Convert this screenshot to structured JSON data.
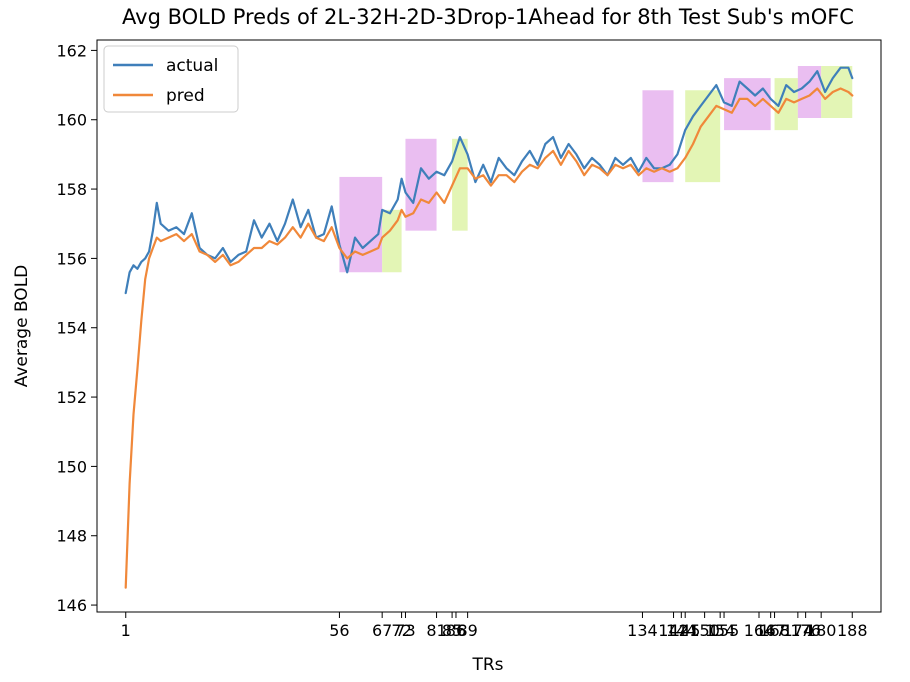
{
  "chart_data": {
    "type": "line",
    "title": "Avg BOLD Preds of 2L-32H-2D-3Drop-1Ahead for 8th Test Sub's mOFC",
    "xlabel": "TRs",
    "ylabel": "Average BOLD",
    "xlim": [
      -6.4,
      195.4
    ],
    "ylim": [
      145.8,
      162.3
    ],
    "x_ticks": [
      1,
      56,
      67,
      72,
      73,
      81,
      85,
      86,
      89,
      134,
      142,
      144,
      145,
      150,
      154,
      155,
      164,
      167,
      168,
      174,
      176,
      180,
      188
    ],
    "y_ticks": [
      146,
      148,
      150,
      152,
      154,
      156,
      158,
      160,
      162
    ],
    "legend": {
      "position": "top-left",
      "entries": [
        "actual",
        "pred"
      ]
    },
    "colors": {
      "actual": "#3f7fba",
      "pred": "#f0883a",
      "region_magenta": "#e3a8ec",
      "region_green": "#d9f29c"
    },
    "regions": [
      {
        "x0": 56,
        "x1": 67,
        "y0": 155.6,
        "y1": 158.35,
        "color": "magenta"
      },
      {
        "x0": 67,
        "x1": 72,
        "y0": 155.6,
        "y1": 157.4,
        "color": "green"
      },
      {
        "x0": 73,
        "x1": 81,
        "y0": 156.8,
        "y1": 159.45,
        "color": "magenta"
      },
      {
        "x0": 85,
        "x1": 89,
        "y0": 156.8,
        "y1": 159.45,
        "color": "green"
      },
      {
        "x0": 134,
        "x1": 142,
        "y0": 158.2,
        "y1": 160.85,
        "color": "magenta"
      },
      {
        "x0": 145,
        "x1": 154,
        "y0": 158.2,
        "y1": 160.85,
        "color": "green"
      },
      {
        "x0": 155,
        "x1": 167,
        "y0": 159.7,
        "y1": 161.2,
        "color": "magenta"
      },
      {
        "x0": 168,
        "x1": 174,
        "y0": 159.7,
        "y1": 161.2,
        "color": "green"
      },
      {
        "x0": 174,
        "x1": 180,
        "y0": 160.05,
        "y1": 161.55,
        "color": "magenta"
      },
      {
        "x0": 180,
        "x1": 188,
        "y0": 160.05,
        "y1": 161.55,
        "color": "green"
      }
    ],
    "series": [
      {
        "name": "actual",
        "x": [
          1,
          2,
          3,
          4,
          5,
          6,
          7,
          8,
          9,
          10,
          12,
          14,
          16,
          18,
          20,
          22,
          24,
          26,
          28,
          30,
          32,
          34,
          36,
          38,
          40,
          42,
          44,
          46,
          48,
          50,
          52,
          54,
          56,
          58,
          60,
          62,
          64,
          66,
          67,
          69,
          71,
          72,
          73,
          75,
          77,
          79,
          81,
          83,
          85,
          87,
          89,
          91,
          93,
          95,
          97,
          99,
          101,
          103,
          105,
          107,
          109,
          111,
          113,
          115,
          117,
          119,
          121,
          123,
          125,
          127,
          129,
          131,
          133,
          135,
          137,
          139,
          141,
          143,
          145,
          147,
          149,
          151,
          153,
          155,
          157,
          159,
          161,
          163,
          165,
          167,
          169,
          171,
          173,
          175,
          177,
          179,
          181,
          183,
          185,
          187,
          188
        ],
        "y": [
          155.0,
          155.6,
          155.8,
          155.7,
          155.9,
          156.0,
          156.2,
          156.8,
          157.6,
          157.0,
          156.8,
          156.9,
          156.7,
          157.3,
          156.3,
          156.1,
          156.0,
          156.3,
          155.9,
          156.1,
          156.2,
          157.1,
          156.6,
          157.0,
          156.5,
          157.0,
          157.7,
          156.9,
          157.4,
          156.6,
          156.7,
          157.5,
          156.4,
          155.6,
          156.6,
          156.3,
          156.5,
          156.7,
          157.4,
          157.3,
          157.7,
          158.3,
          157.9,
          157.6,
          158.6,
          158.3,
          158.5,
          158.4,
          158.8,
          159.5,
          159.0,
          158.2,
          158.7,
          158.2,
          158.9,
          158.6,
          158.4,
          158.8,
          159.1,
          158.7,
          159.3,
          159.5,
          158.9,
          159.3,
          159.0,
          158.6,
          158.9,
          158.7,
          158.4,
          158.9,
          158.7,
          158.9,
          158.5,
          158.9,
          158.6,
          158.6,
          158.7,
          159.0,
          159.7,
          160.1,
          160.4,
          160.7,
          161.0,
          160.5,
          160.4,
          161.1,
          160.9,
          160.7,
          160.9,
          160.6,
          160.4,
          161.0,
          160.8,
          160.9,
          161.1,
          161.4,
          160.8,
          161.2,
          161.5,
          161.5,
          161.2
        ]
      },
      {
        "name": "pred",
        "x": [
          1,
          2,
          3,
          4,
          5,
          6,
          7,
          8,
          9,
          10,
          12,
          14,
          16,
          18,
          20,
          22,
          24,
          26,
          28,
          30,
          32,
          34,
          36,
          38,
          40,
          42,
          44,
          46,
          48,
          50,
          52,
          54,
          56,
          58,
          60,
          62,
          64,
          66,
          67,
          69,
          71,
          72,
          73,
          75,
          77,
          79,
          81,
          83,
          85,
          87,
          89,
          91,
          93,
          95,
          97,
          99,
          101,
          103,
          105,
          107,
          109,
          111,
          113,
          115,
          117,
          119,
          121,
          123,
          125,
          127,
          129,
          131,
          133,
          135,
          137,
          139,
          141,
          143,
          145,
          147,
          149,
          151,
          153,
          155,
          157,
          159,
          161,
          163,
          165,
          167,
          169,
          171,
          173,
          175,
          177,
          179,
          181,
          183,
          185,
          187,
          188
        ],
        "y": [
          146.5,
          149.5,
          151.5,
          152.8,
          154.2,
          155.4,
          156.0,
          156.3,
          156.6,
          156.5,
          156.6,
          156.7,
          156.5,
          156.7,
          156.2,
          156.1,
          155.9,
          156.1,
          155.8,
          155.9,
          156.1,
          156.3,
          156.3,
          156.5,
          156.4,
          156.6,
          156.9,
          156.6,
          157.0,
          156.6,
          156.5,
          156.9,
          156.3,
          156.0,
          156.2,
          156.1,
          156.2,
          156.3,
          156.6,
          156.8,
          157.1,
          157.4,
          157.2,
          157.3,
          157.7,
          157.6,
          157.9,
          157.6,
          158.1,
          158.6,
          158.6,
          158.3,
          158.4,
          158.1,
          158.4,
          158.4,
          158.2,
          158.5,
          158.7,
          158.6,
          158.9,
          159.1,
          158.7,
          159.1,
          158.8,
          158.4,
          158.7,
          158.6,
          158.4,
          158.7,
          158.6,
          158.7,
          158.4,
          158.6,
          158.5,
          158.6,
          158.5,
          158.6,
          158.9,
          159.3,
          159.8,
          160.1,
          160.4,
          160.3,
          160.2,
          160.6,
          160.6,
          160.4,
          160.6,
          160.4,
          160.2,
          160.6,
          160.5,
          160.6,
          160.7,
          160.9,
          160.6,
          160.8,
          160.9,
          160.8,
          160.7
        ]
      }
    ]
  }
}
